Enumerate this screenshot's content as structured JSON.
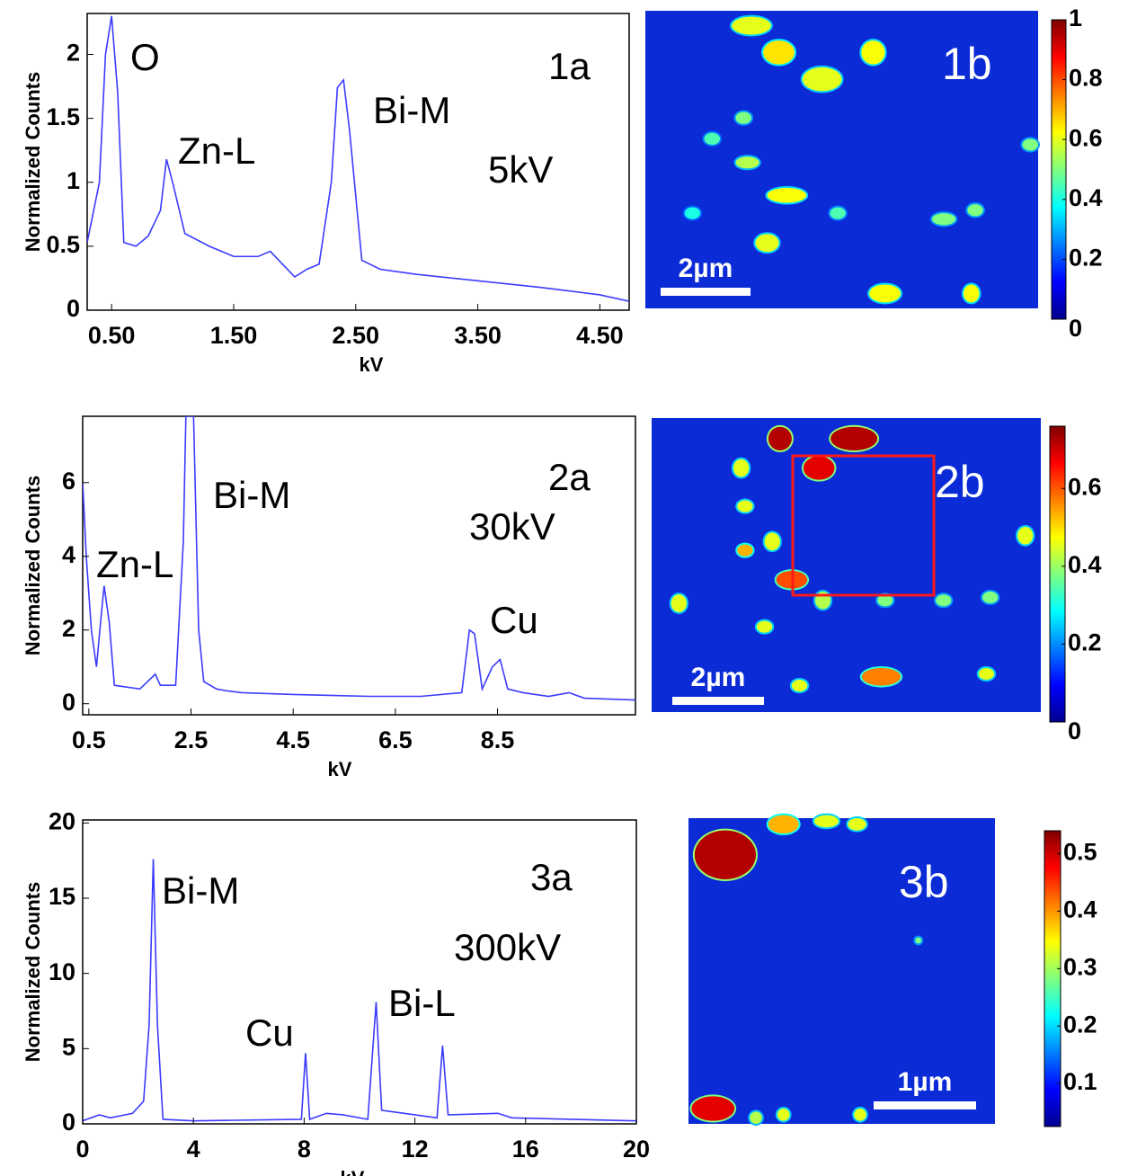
{
  "chart_data": [
    {
      "type": "line",
      "ylabel": "Normalized Counts",
      "xlabel": "kV",
      "annotations": [
        "O",
        "Zn-L",
        "Bi-M",
        "5kV",
        "1a"
      ],
      "xlim": [
        0.3,
        4.74
      ],
      "ylim": [
        0,
        2.32
      ],
      "xticks": [
        {
          "value": 0.5,
          "label": "0.50"
        },
        {
          "value": 1.5,
          "label": "1.50"
        },
        {
          "value": 2.5,
          "label": "2.50"
        },
        {
          "value": 3.5,
          "label": "3.50"
        },
        {
          "value": 4.5,
          "label": "4.50"
        }
      ],
      "yticks": [
        0,
        0.5,
        1,
        1.5,
        2
      ],
      "x": [
        0.3,
        0.4,
        0.45,
        0.5,
        0.55,
        0.6,
        0.7,
        0.8,
        0.9,
        0.95,
        1.0,
        1.1,
        1.3,
        1.5,
        1.7,
        1.8,
        1.9,
        2.0,
        2.1,
        2.2,
        2.3,
        2.35,
        2.4,
        2.45,
        2.55,
        2.7,
        3.0,
        3.5,
        4.0,
        4.5,
        4.74
      ],
      "series": [
        {
          "color": "#3b3bff",
          "values": [
            0.53,
            1.0,
            2.0,
            2.3,
            1.7,
            0.53,
            0.5,
            0.58,
            0.78,
            1.18,
            1.0,
            0.6,
            0.5,
            0.42,
            0.42,
            0.46,
            0.36,
            0.26,
            0.32,
            0.36,
            1.0,
            1.74,
            1.8,
            1.4,
            0.39,
            0.32,
            0.28,
            0.23,
            0.18,
            0.12,
            0.07
          ]
        }
      ]
    },
    {
      "type": "heatmap",
      "label": "1b",
      "scale_bar": "2µm",
      "colormap": "jet",
      "clim": [
        0,
        1
      ],
      "cticks": [
        0,
        0.2,
        0.4,
        0.6,
        0.8,
        1
      ]
    },
    {
      "type": "line",
      "ylabel": "Normalized Counts",
      "xlabel": "kV",
      "annotations": [
        "Bi-M",
        "2a",
        "30kV",
        "Zn-L",
        "Cu"
      ],
      "xlim": [
        0.38,
        11.2
      ],
      "ylim": [
        -0.3,
        7.8
      ],
      "xticks": [
        0.5,
        2.5,
        4.5,
        6.5,
        8.5
      ],
      "yticks": [
        0,
        2,
        4,
        6
      ],
      "x": [
        0.38,
        0.45,
        0.55,
        0.65,
        0.75,
        0.8,
        0.9,
        1.0,
        1.5,
        1.8,
        1.9,
        2.2,
        2.35,
        2.4,
        2.55,
        2.65,
        2.75,
        3.0,
        3.2,
        3.5,
        4.5,
        6.0,
        7.0,
        7.8,
        7.95,
        8.05,
        8.2,
        8.4,
        8.55,
        8.7,
        9.0,
        9.5,
        9.9,
        10.2,
        11.2
      ],
      "series": [
        {
          "color": "#3b3bff",
          "values": [
            6.0,
            4.0,
            2.0,
            1.0,
            2.5,
            3.2,
            2.2,
            0.5,
            0.4,
            0.8,
            0.5,
            0.5,
            4.4,
            7.8,
            7.8,
            2.0,
            0.6,
            0.4,
            0.35,
            0.3,
            0.25,
            0.2,
            0.2,
            0.3,
            2.0,
            1.9,
            0.4,
            1.0,
            1.2,
            0.4,
            0.3,
            0.2,
            0.3,
            0.15,
            0.1
          ]
        }
      ]
    },
    {
      "type": "heatmap",
      "label": "2b",
      "scale_bar": "2µm",
      "colormap": "jet",
      "clim": [
        0,
        0.76
      ],
      "cticks": [
        0,
        0.2,
        0.4,
        0.6
      ]
    },
    {
      "type": "line",
      "ylabel": "Normalized Counts",
      "xlabel": "kV",
      "annotations": [
        "Bi-M",
        "3a",
        "300kV",
        "Cu",
        "Bi-L"
      ],
      "xlim": [
        0,
        20
      ],
      "ylim": [
        0,
        20.2
      ],
      "xticks": [
        0,
        4,
        8,
        12,
        16,
        20
      ],
      "yticks": [
        0,
        5,
        10,
        15,
        20
      ],
      "x": [
        0,
        0.6,
        1.0,
        1.8,
        2.2,
        2.4,
        2.55,
        2.7,
        2.9,
        4,
        7.9,
        8.05,
        8.2,
        8.8,
        9.4,
        10.3,
        10.6,
        10.8,
        12.8,
        13.0,
        13.2,
        15.0,
        15.5,
        20
      ],
      "series": [
        {
          "color": "#3b3bff",
          "values": [
            0.2,
            0.6,
            0.4,
            0.7,
            1.5,
            6.6,
            17.6,
            6.6,
            0.3,
            0.2,
            0.3,
            4.7,
            0.3,
            0.7,
            0.6,
            0.3,
            8.1,
            0.9,
            0.4,
            5.2,
            0.6,
            0.7,
            0.4,
            0.2
          ]
        }
      ]
    },
    {
      "type": "heatmap",
      "label": "3b",
      "scale_bar": "1µm",
      "colormap": "jet",
      "clim": [
        0.025,
        0.54
      ],
      "cticks": [
        0.1,
        0.2,
        0.3,
        0.4,
        0.5
      ]
    }
  ]
}
